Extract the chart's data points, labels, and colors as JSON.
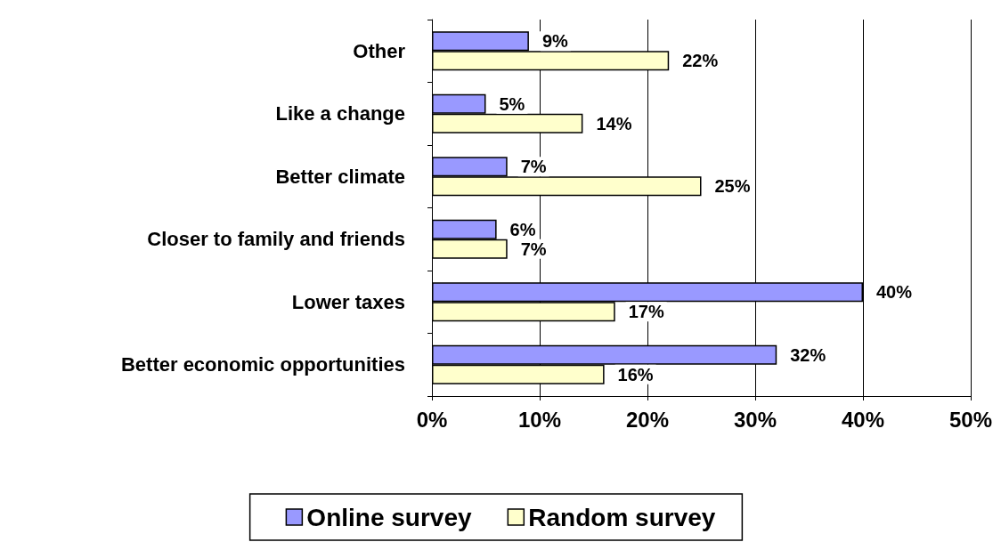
{
  "chart_data": {
    "type": "bar",
    "orientation": "horizontal",
    "categories": [
      "Other",
      "Like a change",
      "Better climate",
      "Closer to family and friends",
      "Lower taxes",
      "Better economic opportunities"
    ],
    "series": [
      {
        "name": "Online survey",
        "color": "#9999ff",
        "values": [
          9,
          5,
          7,
          6,
          40,
          32
        ],
        "value_labels": [
          "9%",
          "5%",
          "7%",
          "6%",
          "40%",
          "32%"
        ]
      },
      {
        "name": "Random survey",
        "color": "#ffffcc",
        "values": [
          22,
          14,
          25,
          7,
          17,
          16
        ],
        "value_labels": [
          "22%",
          "14%",
          "25%",
          "7%",
          "17%",
          "16%"
        ]
      }
    ],
    "xlim": [
      0,
      50
    ],
    "xticks": [
      {
        "value": 0,
        "label": "0%"
      },
      {
        "value": 10,
        "label": "10%"
      },
      {
        "value": 20,
        "label": "20%"
      },
      {
        "value": 30,
        "label": "30%"
      },
      {
        "value": 40,
        "label": "40%"
      },
      {
        "value": 50,
        "label": "50%"
      }
    ],
    "grid": "x",
    "legend": "bottom"
  }
}
